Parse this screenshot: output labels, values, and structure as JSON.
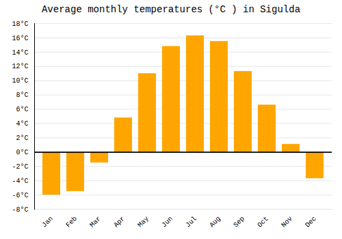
{
  "chart_data": {
    "type": "bar",
    "title": "Average monthly temperatures (°C ) in Sigulda",
    "categories": [
      "Jan",
      "Feb",
      "Mar",
      "Apr",
      "May",
      "Jun",
      "Jul",
      "Aug",
      "Sep",
      "Oct",
      "Nov",
      "Dec"
    ],
    "values": [
      -6.0,
      -5.5,
      -1.5,
      4.8,
      11.0,
      14.8,
      16.3,
      15.5,
      11.3,
      6.6,
      1.1,
      -3.7
    ],
    "color": "#FFA500",
    "ylim": [
      -8,
      18
    ],
    "yticks": [
      {
        "value": -8,
        "label": "-8°C"
      },
      {
        "value": -6,
        "label": "-6°C"
      },
      {
        "value": -4,
        "label": "-4°C"
      },
      {
        "value": -2,
        "label": "-2°C"
      },
      {
        "value": 0,
        "label": "0°C"
      },
      {
        "value": 2,
        "label": "2°C"
      },
      {
        "value": 4,
        "label": "4°C"
      },
      {
        "value": 6,
        "label": "6°C"
      },
      {
        "value": 8,
        "label": "8°C"
      },
      {
        "value": 10,
        "label": "10°C"
      },
      {
        "value": 12,
        "label": "12°C"
      },
      {
        "value": 14,
        "label": "14°C"
      },
      {
        "value": 16,
        "label": "16°C"
      },
      {
        "value": 18,
        "label": "18°C"
      }
    ],
    "grid": true
  }
}
